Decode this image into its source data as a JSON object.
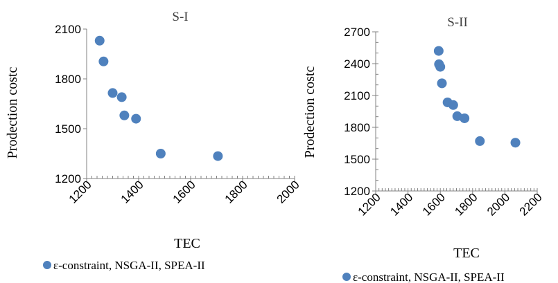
{
  "colors": {
    "marker": "#4f81bd",
    "axis": "#808080",
    "text": "#000000"
  },
  "chart_data": [
    {
      "type": "scatter",
      "title": "S-I",
      "xlabel": "TEC",
      "ylabel": "Prodection costc",
      "xlim": [
        1200,
        2000
      ],
      "ylim": [
        1200,
        2100
      ],
      "xticks": [
        "1200",
        "1400",
        "1600",
        "1800",
        "2000"
      ],
      "yticks": [
        "1200",
        "1500",
        "1800",
        "2100"
      ],
      "grid": false,
      "legend_position": "bottom",
      "series": [
        {
          "name": "ε-constraint, NSGA-II,  SPEA-II",
          "x": [
            1250,
            1265,
            1300,
            1335,
            1345,
            1390,
            1485,
            1705
          ],
          "y": [
            2030,
            1905,
            1715,
            1690,
            1580,
            1560,
            1350,
            1335
          ]
        }
      ]
    },
    {
      "type": "scatter",
      "title": "S-II",
      "xlabel": "TEC",
      "ylabel": "Prodection costc",
      "xlim": [
        1200,
        2200
      ],
      "ylim": [
        1200,
        2700
      ],
      "xticks": [
        "1200",
        "1400",
        "1600",
        "1800",
        "2000",
        "2200"
      ],
      "yticks": [
        "1200",
        "1500",
        "1800",
        "2100",
        "2400",
        "2700"
      ],
      "grid": false,
      "legend_position": "bottom",
      "series": [
        {
          "name": "ε-constraint, NSGA-II,  SPEA-II",
          "x": [
            1590,
            1592,
            1600,
            1610,
            1645,
            1680,
            1705,
            1750,
            1845,
            2065
          ],
          "y": [
            2520,
            2395,
            2370,
            2215,
            2035,
            2010,
            1905,
            1885,
            1670,
            1655
          ]
        }
      ]
    }
  ]
}
